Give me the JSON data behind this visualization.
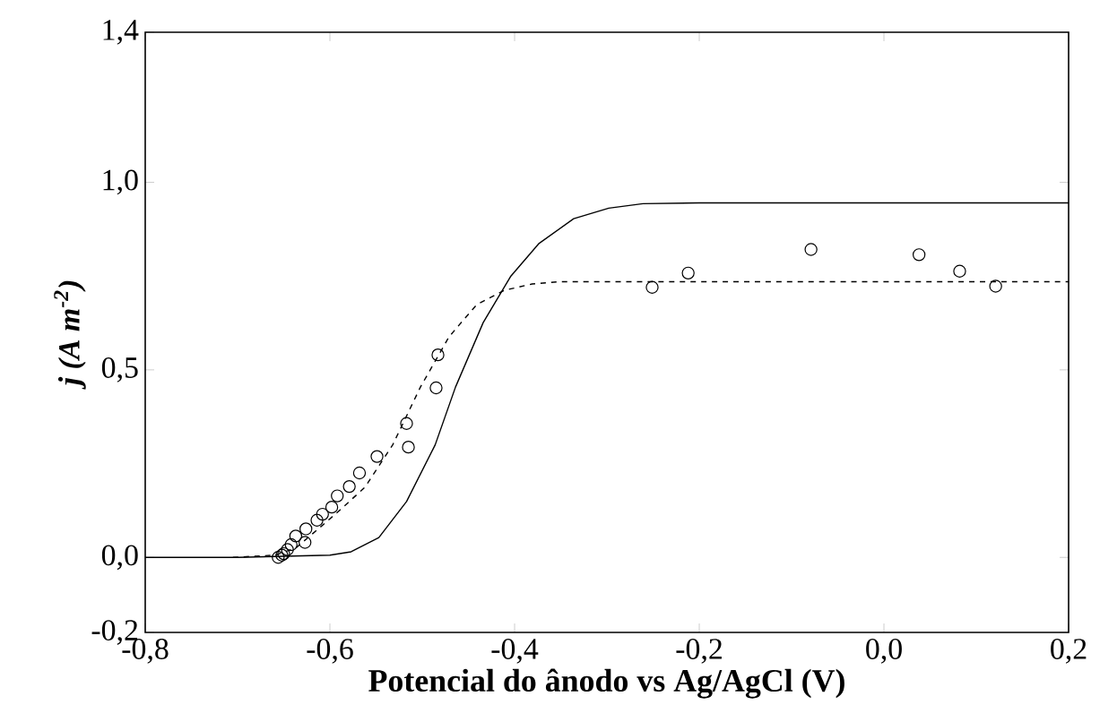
{
  "chart_data": {
    "type": "line",
    "xlabel": "Potencial do ânodo vs Ag/AgCl (V)",
    "ylabel": "j (A m$^{-2}$)",
    "xlim": [
      -0.8,
      0.2
    ],
    "ylim": [
      -0.2,
      1.4
    ],
    "xticks": [
      {
        "value": -0.8,
        "label": "-0,8"
      },
      {
        "value": -0.6,
        "label": "-0,6"
      },
      {
        "value": -0.4,
        "label": "-0,4"
      },
      {
        "value": -0.2,
        "label": "-0,2"
      },
      {
        "value": 0.0,
        "label": "0,0"
      },
      {
        "value": 0.2,
        "label": "0,2"
      }
    ],
    "yticks": [
      {
        "value": -0.2,
        "label": "-0,2"
      },
      {
        "value": 0.0,
        "label": "0,0"
      },
      {
        "value": 0.5,
        "label": "0,5"
      },
      {
        "value": 1.0,
        "label": "1,0"
      },
      {
        "value": 1.4,
        "label": "1,4"
      }
    ],
    "grid": false,
    "series": [
      {
        "color": "#000000",
        "line_style": "solid",
        "marker": "none",
        "x": [
          -0.8,
          -0.7,
          -0.6,
          -0.577,
          -0.547,
          -0.517,
          -0.486,
          -0.464,
          -0.434,
          -0.404,
          -0.374,
          -0.336,
          -0.298,
          -0.261,
          -0.2,
          0.2
        ],
        "values": [
          0.0,
          0.0,
          0.006,
          0.015,
          0.053,
          0.149,
          0.3,
          0.454,
          0.626,
          0.75,
          0.836,
          0.903,
          0.931,
          0.943,
          0.945,
          0.945
        ]
      },
      {
        "color": "#000000",
        "line_style": "dashed",
        "marker": "none",
        "x": [
          -0.705,
          -0.659,
          -0.637,
          -0.614,
          -0.592,
          -0.562,
          -0.532,
          -0.502,
          -0.471,
          -0.441,
          -0.411,
          -0.381,
          -0.351,
          0.2
        ],
        "values": [
          0.0,
          0.006,
          0.025,
          0.073,
          0.12,
          0.187,
          0.3,
          0.454,
          0.588,
          0.674,
          0.712,
          0.729,
          0.735,
          0.735
        ]
      },
      {
        "type": "scatter",
        "color": "#000000",
        "marker": "circle",
        "x": [
          -0.656,
          -0.652,
          -0.65,
          -0.646,
          -0.642,
          -0.637,
          -0.627,
          -0.626,
          -0.614,
          -0.608,
          -0.598,
          -0.592,
          -0.579,
          -0.568,
          -0.549,
          -0.517,
          -0.515,
          -0.485,
          -0.483,
          -0.251,
          -0.212,
          -0.079,
          0.038,
          0.082,
          0.121
        ],
        "values": [
          0.0,
          0.006,
          0.01,
          0.021,
          0.034,
          0.057,
          0.04,
          0.076,
          0.099,
          0.115,
          0.134,
          0.164,
          0.189,
          0.225,
          0.269,
          0.357,
          0.294,
          0.452,
          0.54,
          0.72,
          0.758,
          0.821,
          0.807,
          0.763,
          0.723
        ]
      }
    ]
  }
}
